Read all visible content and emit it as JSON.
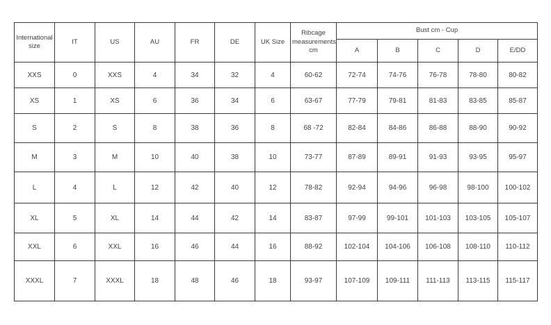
{
  "colors": {
    "background": "#ffffff",
    "border": "#3b3b3b",
    "text": "#404040"
  },
  "table": {
    "header": {
      "columns": [
        "International size",
        "IT",
        "US",
        "AU",
        "FR",
        "DE",
        "UK Size",
        "Ribcage measurements cm"
      ],
      "bust_group": "Bust cm - Cup",
      "cups": [
        "A",
        "B",
        "C",
        "D",
        "E/DD"
      ]
    },
    "rows": [
      [
        "XXS",
        "0",
        "XXS",
        "4",
        "34",
        "32",
        "4",
        "60-62",
        "72-74",
        "74-76",
        "76-78",
        "78-80",
        "80-82"
      ],
      [
        "XS",
        "1",
        "XS",
        "6",
        "36",
        "34",
        "6",
        "63-67",
        "77-79",
        "79-81",
        "81-83",
        "83-85",
        "85-87"
      ],
      [
        "S",
        "2",
        "S",
        "8",
        "38",
        "36",
        "8",
        "68 -72",
        "82-84",
        "84-86",
        "86-88",
        "88-90",
        "90-92"
      ],
      [
        "M",
        "3",
        "M",
        "10",
        "40",
        "38",
        "10",
        "73-77",
        "87-89",
        "89-91",
        "91-93",
        "93-95",
        "95-97"
      ],
      [
        "L",
        "4",
        "L",
        "12",
        "42",
        "40",
        "12",
        "78-82",
        "92-94",
        "94-96",
        "96-98",
        "98-100",
        "100-102"
      ],
      [
        "XL",
        "5",
        "XL",
        "14",
        "44",
        "42",
        "14",
        "83-87",
        "97-99",
        "99-101",
        "101-103",
        "103-105",
        "105-107"
      ],
      [
        "XXL",
        "6",
        "XXL",
        "16",
        "46",
        "44",
        "16",
        "88-92",
        "102-104",
        "104-106",
        "106-108",
        "108-110",
        "110-112"
      ],
      [
        "XXXL",
        "7",
        "XXXL",
        "18",
        "48",
        "46",
        "18",
        "93-97",
        "107-109",
        "109-111",
        "111-113",
        "113-115",
        "115-117"
      ]
    ]
  }
}
